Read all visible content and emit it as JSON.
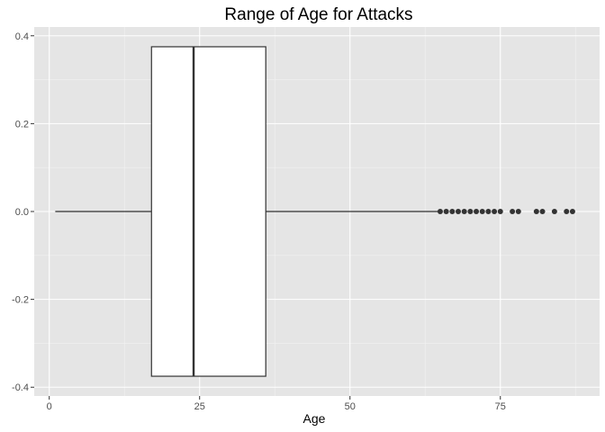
{
  "chart_data": {
    "type": "boxplot",
    "title": "Range of Age for Attacks",
    "xlabel": "Age",
    "ylabel": "",
    "xlim": [
      -2.5,
      91.5
    ],
    "ylim": [
      -0.42,
      0.42
    ],
    "x_ticks": [
      0,
      25,
      50,
      75
    ],
    "y_ticks": [
      -0.4,
      -0.2,
      0.0,
      0.2,
      0.4
    ],
    "x_tick_labels": [
      "0",
      "25",
      "50",
      "75"
    ],
    "y_tick_labels": [
      "-0.4",
      "-0.2",
      "0.0",
      "0.2",
      "0.4"
    ],
    "box": {
      "whisker_low": 1,
      "q1": 17,
      "median": 24,
      "q3": 36,
      "whisker_high": 65,
      "y_center": 0.0,
      "half_width": 0.375
    },
    "outliers": [
      65,
      66,
      67,
      68,
      69,
      70,
      71,
      72,
      73,
      74,
      75,
      77,
      78,
      81,
      82,
      84,
      86,
      87
    ],
    "grid": true,
    "colors": {
      "panel_background": "#e5e5e5",
      "grid_major": "#ffffff",
      "grid_minor": "#f2f2f2",
      "box_fill": "#ffffff",
      "box_line": "#333333",
      "outlier": "#333333",
      "tick_text": "#4d4d4d",
      "tick_mark": "#333333"
    }
  }
}
